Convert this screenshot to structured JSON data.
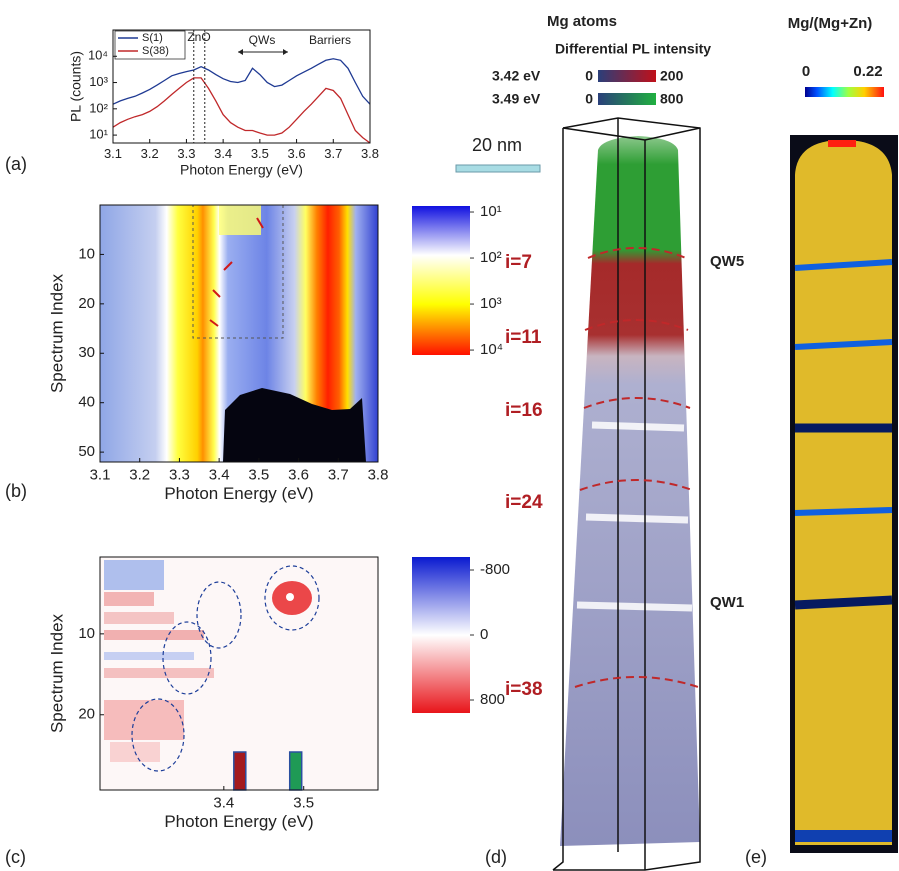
{
  "chart_data": [
    {
      "type": "line",
      "panel_label": "(a)",
      "xlabel": "Photon Energy (eV)",
      "ylabel": "PL (counts)",
      "xlim": [
        3.1,
        3.8
      ],
      "xticks": [
        3.1,
        3.2,
        3.3,
        3.4,
        3.5,
        3.6,
        3.7,
        3.8
      ],
      "ylim": [
        5,
        100000
      ],
      "log_y": true,
      "yticks": [
        {
          "value": 10,
          "label": "10¹"
        },
        {
          "value": 100,
          "label": "10²"
        },
        {
          "value": 1000,
          "label": "10³"
        },
        {
          "value": 10000,
          "label": "10⁴"
        }
      ],
      "x": [
        3.1,
        3.12,
        3.14,
        3.16,
        3.18,
        3.2,
        3.22,
        3.24,
        3.26,
        3.28,
        3.3,
        3.32,
        3.34,
        3.36,
        3.38,
        3.4,
        3.42,
        3.44,
        3.46,
        3.48,
        3.5,
        3.52,
        3.54,
        3.56,
        3.58,
        3.6,
        3.62,
        3.64,
        3.66,
        3.68,
        3.7,
        3.72,
        3.74,
        3.76,
        3.78,
        3.8
      ],
      "series": [
        {
          "name": "S(1)",
          "color": "#1f3a93",
          "values": [
            150,
            200,
            250,
            300,
            400,
            550,
            800,
            1200,
            1800,
            2200,
            2600,
            3000,
            4000,
            3000,
            2000,
            1400,
            1100,
            1000,
            1200,
            3500,
            2000,
            1000,
            700,
            800,
            1200,
            1800,
            2500,
            3500,
            5000,
            7000,
            8000,
            7000,
            3500,
            1000,
            300,
            150
          ]
        },
        {
          "name": "S(38)",
          "color": "#c0282a",
          "values": [
            20,
            30,
            40,
            50,
            60,
            80,
            120,
            200,
            350,
            600,
            1000,
            1500,
            1500,
            600,
            200,
            60,
            30,
            20,
            15,
            15,
            12,
            10,
            10,
            12,
            20,
            40,
            80,
            150,
            300,
            600,
            500,
            250,
            60,
            15,
            8,
            5
          ]
        }
      ],
      "vlines": [
        3.32,
        3.35
      ],
      "annotations": [
        "ZnO",
        "QWs",
        "Barriers"
      ]
    },
    {
      "type": "heatmap",
      "panel_label": "(b)",
      "xlabel": "Photon Energy (eV)",
      "ylabel": "Spectrum Index",
      "xlim": [
        3.1,
        3.8
      ],
      "xticks": [
        3.1,
        3.2,
        3.3,
        3.4,
        3.5,
        3.6,
        3.7,
        3.8
      ],
      "ylim": [
        52,
        0
      ],
      "yticks": [
        10,
        20,
        30,
        40,
        50
      ],
      "colorbar": {
        "lim": [
          7.4,
          12800
        ],
        "log": true,
        "ticks": [
          {
            "value": 10,
            "label": "10¹"
          },
          {
            "value": 100,
            "label": "10²"
          },
          {
            "value": 1000,
            "label": "10³"
          },
          {
            "value": 10000,
            "label": "10⁴"
          }
        ]
      }
    },
    {
      "type": "heatmap",
      "panel_label": "(c)",
      "xlabel": "Photon Energy (eV)",
      "ylabel": "Spectrum Index",
      "xlim": [
        3.245,
        3.593
      ],
      "xticks": [
        3.4,
        3.5
      ],
      "ylim": [
        29.3,
        0.5
      ],
      "yticks": [
        10,
        20
      ],
      "colorbar": {
        "lim": [
          -960,
          960
        ],
        "log": false,
        "ticks": [
          -800,
          0,
          800
        ]
      },
      "bars": [
        {
          "x": 3.42,
          "color": "#a31a1f"
        },
        {
          "x": 3.49,
          "color": "#1f9a55"
        }
      ]
    }
  ],
  "panel_d": {
    "panel_label": "(d)",
    "title": "Mg atoms",
    "legend_title": "Differential  PL intensity",
    "legend": [
      {
        "energy": "3.42 eV",
        "min": 0,
        "max": 200
      },
      {
        "energy": "3.49 eV",
        "min": 0,
        "max": 800
      }
    ],
    "scale_bar": "20 nm",
    "layers": [
      "i=7",
      "i=11",
      "i=16",
      "i=24",
      "i=38"
    ],
    "wells": [
      "QW5",
      "QW1"
    ]
  },
  "panel_e": {
    "panel_label": "(e)",
    "title": "Mg/(Mg+Zn)",
    "min": 0,
    "max": 0.22
  }
}
